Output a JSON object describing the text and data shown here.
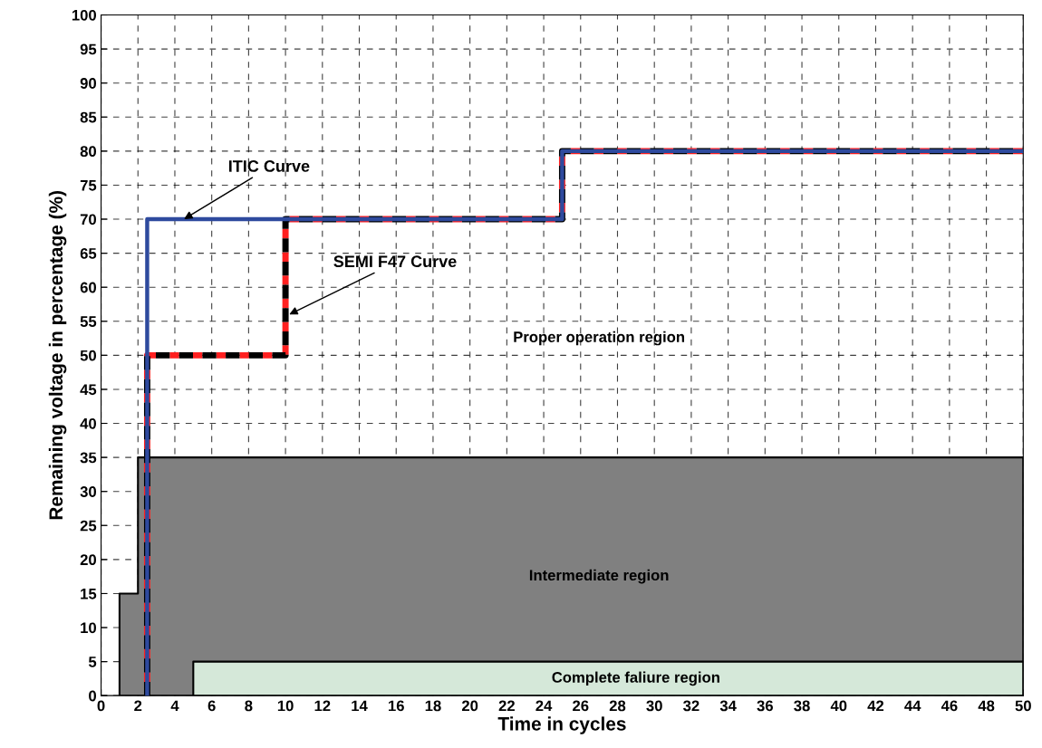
{
  "chart_data": {
    "type": "line",
    "xlabel": "Time in cycles",
    "ylabel": "Remaining voltage in percentage (%)",
    "xlim": [
      0,
      50
    ],
    "xticks": [
      0,
      2,
      4,
      6,
      8,
      10,
      12,
      14,
      16,
      18,
      20,
      22,
      24,
      26,
      28,
      30,
      32,
      34,
      36,
      38,
      40,
      42,
      44,
      46,
      48,
      50
    ],
    "ylim": [
      0,
      100
    ],
    "yticks": [
      0,
      5,
      10,
      15,
      20,
      25,
      30,
      35,
      40,
      45,
      50,
      55,
      60,
      65,
      70,
      75,
      80,
      85,
      90,
      95,
      100
    ],
    "grid": true,
    "marker": "none",
    "series": [
      {
        "name": "Intermediate region",
        "type": "area",
        "color": "#808080",
        "x": [
          1,
          2,
          50
        ],
        "values": [
          15,
          35,
          35
        ]
      },
      {
        "name": "Complete faliure region",
        "type": "area",
        "color": "#d5e8d9",
        "x": [
          5,
          50
        ],
        "values": [
          5,
          5
        ]
      },
      {
        "color": "#ff2020",
        "line_style": "dashed",
        "x": [
          2.5,
          2.5,
          10,
          10,
          25,
          25,
          50
        ],
        "values": [
          0,
          50,
          50,
          70,
          70,
          80,
          80
        ]
      },
      {
        "color": "#2e4a9e",
        "line_style": "solid",
        "x": [
          2.5,
          2.5,
          25,
          25,
          50
        ],
        "values": [
          0,
          70,
          70,
          80,
          80
        ]
      }
    ],
    "annotations": [
      {
        "text": "ITIC Curve",
        "x": 4.5,
        "y": 70
      },
      {
        "text": "SEMI F47 Curve",
        "x": 10.2,
        "y": 56
      },
      "Proper operation region"
    ]
  }
}
